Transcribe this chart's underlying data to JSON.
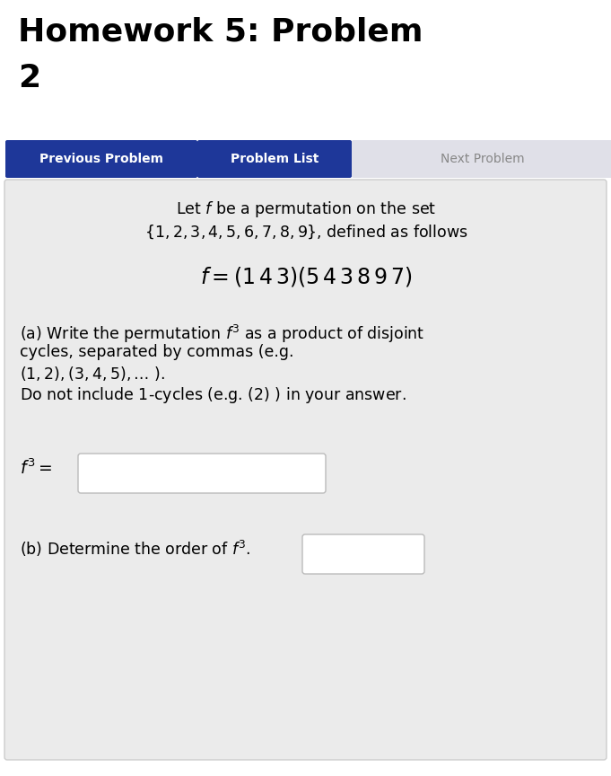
{
  "title_line1": "Homework 5: Problem",
  "title_line2": "2",
  "title_fontsize": 26,
  "title_fontweight": "bold",
  "title_color": "#000000",
  "bg_color": "#ffffff",
  "btn1_text": "Previous Problem",
  "btn2_text": "Problem List",
  "btn3_text": "Next Problem",
  "btn_active_color": "#1e3799",
  "btn_inactive_color": "#e0e0e8",
  "btn_active_text_color": "#ffffff",
  "btn_inactive_text_color": "#888888",
  "content_bg": "#ebebeb",
  "content_border": "#cccccc",
  "input_box_color": "#ffffff",
  "input_box_border": "#bbbbbb",
  "text_fontsize": 12.5,
  "formula_fontsize": 17
}
